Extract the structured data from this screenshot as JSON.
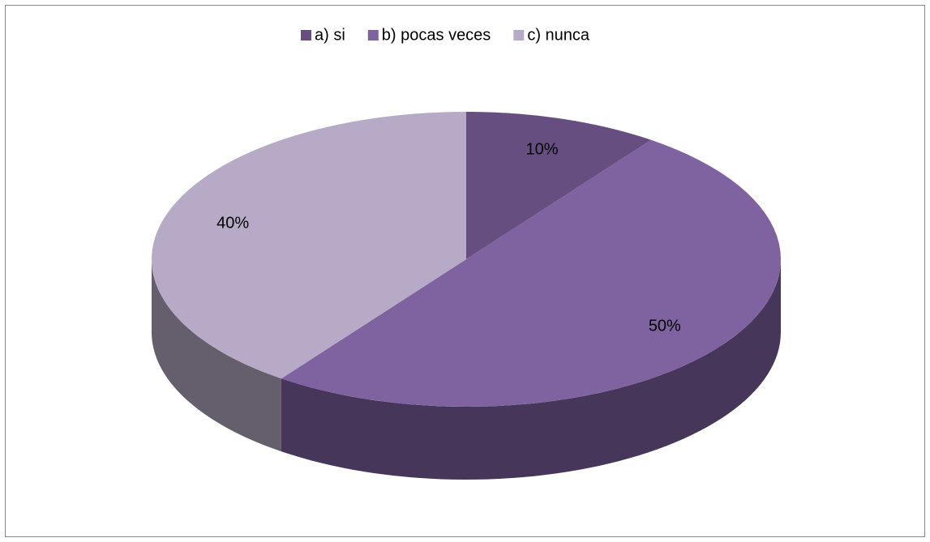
{
  "chart_data": {
    "type": "pie",
    "categories": [
      "a) si",
      "b) pocas veces",
      "c) nunca"
    ],
    "values": [
      10,
      50,
      40
    ],
    "value_labels": [
      "10%",
      "50%",
      "40%"
    ],
    "colors": [
      "#664f80",
      "#7f63a1",
      "#b6aac7"
    ],
    "legend": "top"
  }
}
